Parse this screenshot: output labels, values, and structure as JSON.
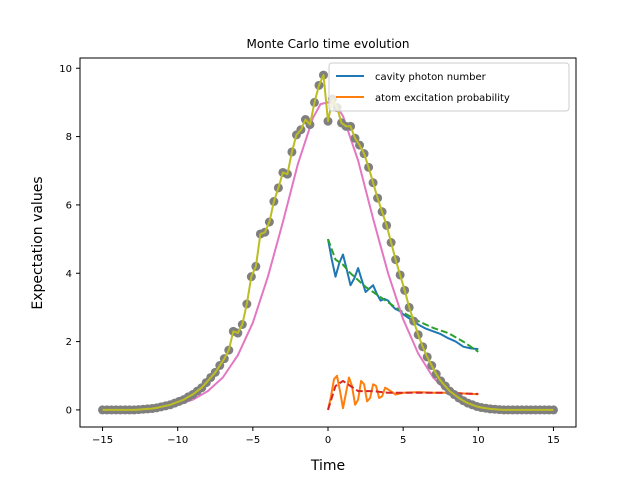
{
  "chart_data": {
    "type": "line",
    "title": "Monte Carlo time evolution",
    "xlabel": "Time",
    "ylabel": "Expectation values",
    "xlim": [
      -16.5,
      16.5
    ],
    "ylim": [
      -0.5,
      10.3
    ],
    "xticks": [
      -15,
      -10,
      -5,
      0,
      5,
      10,
      15
    ],
    "yticks": [
      0,
      2,
      4,
      6,
      8,
      10
    ],
    "grid": false,
    "legend_position": "top-right",
    "legend": [
      {
        "name": "cavity photon number",
        "color": "#1f77b4"
      },
      {
        "name": "atom excitation probability",
        "color": "#ff7f0e"
      }
    ],
    "series": [
      {
        "name": "cavity photon number",
        "color": "#1f77b4",
        "style": "solid",
        "x": [
          0.0,
          0.25,
          0.5,
          0.75,
          1.0,
          1.25,
          1.5,
          1.75,
          2.0,
          2.25,
          2.5,
          2.75,
          3.0,
          3.25,
          3.5,
          3.75,
          4.0,
          4.25,
          4.5,
          4.75,
          5.0,
          5.5,
          6.0,
          6.5,
          7.0,
          7.5,
          8.0,
          8.5,
          9.0,
          9.5,
          10.0
        ],
        "y": [
          5.0,
          4.4,
          3.9,
          4.3,
          4.55,
          4.1,
          3.65,
          3.85,
          4.15,
          3.8,
          3.45,
          3.55,
          3.65,
          3.4,
          3.2,
          3.25,
          3.2,
          3.05,
          2.95,
          2.9,
          2.8,
          2.65,
          2.5,
          2.38,
          2.3,
          2.22,
          2.1,
          2.0,
          1.85,
          1.8,
          1.78
        ]
      },
      {
        "name": "atom excitation probability",
        "color": "#ff7f0e",
        "style": "solid",
        "x": [
          0.0,
          0.2,
          0.4,
          0.6,
          0.8,
          1.0,
          1.2,
          1.4,
          1.6,
          1.8,
          2.0,
          2.2,
          2.4,
          2.6,
          2.8,
          3.0,
          3.2,
          3.4,
          3.6,
          3.8,
          4.0,
          4.5,
          5.0,
          6.0,
          7.0,
          8.0,
          9.0,
          10.0
        ],
        "y": [
          0.0,
          0.4,
          0.9,
          1.0,
          0.55,
          0.05,
          0.5,
          0.95,
          0.7,
          0.15,
          0.3,
          0.85,
          0.75,
          0.25,
          0.35,
          0.75,
          0.7,
          0.35,
          0.4,
          0.65,
          0.6,
          0.45,
          0.5,
          0.52,
          0.5,
          0.5,
          0.48,
          0.46
        ]
      },
      {
        "name": "",
        "color": "#2ca02c",
        "style": "dashed",
        "x": [
          0.0,
          0.5,
          1.0,
          1.5,
          2.0,
          2.5,
          3.0,
          3.5,
          4.0,
          4.5,
          5.0,
          6.0,
          7.0,
          8.0,
          9.0,
          10.0
        ],
        "y": [
          5.0,
          4.4,
          4.25,
          4.0,
          3.8,
          3.6,
          3.45,
          3.3,
          3.15,
          3.0,
          2.85,
          2.6,
          2.4,
          2.25,
          2.0,
          1.7
        ]
      },
      {
        "name": "",
        "color": "#d62728",
        "style": "dashed",
        "x": [
          0.0,
          0.5,
          1.0,
          1.5,
          2.0,
          2.5,
          3.0,
          4.0,
          5.0,
          6.0,
          7.0,
          8.0,
          9.0,
          10.0
        ],
        "y": [
          0.0,
          0.7,
          0.85,
          0.7,
          0.55,
          0.55,
          0.55,
          0.5,
          0.5,
          0.5,
          0.5,
          0.5,
          0.48,
          0.47
        ]
      },
      {
        "name": "",
        "color": "#e377c2",
        "style": "solid",
        "x": [
          -15,
          -12,
          -10,
          -9,
          -8,
          -7,
          -6,
          -5,
          -4,
          -3,
          -2,
          -1,
          -0.5,
          0,
          0.5,
          1,
          2,
          3,
          4,
          5,
          6,
          7,
          8,
          9,
          10,
          12,
          15
        ],
        "y": [
          0.02,
          0.05,
          0.15,
          0.3,
          0.55,
          0.95,
          1.6,
          2.55,
          3.9,
          5.5,
          7.2,
          8.55,
          8.95,
          9.0,
          8.95,
          8.6,
          7.3,
          5.6,
          4.0,
          2.65,
          1.65,
          0.95,
          0.5,
          0.25,
          0.12,
          0.03,
          0.0
        ]
      },
      {
        "name": "",
        "color": "#7f7f7f",
        "style": "markers",
        "x": [
          -15.0,
          -14.7,
          -14.4,
          -14.1,
          -13.8,
          -13.5,
          -13.2,
          -12.9,
          -12.6,
          -12.3,
          -12.0,
          -11.7,
          -11.4,
          -11.1,
          -10.8,
          -10.5,
          -10.2,
          -9.9,
          -9.6,
          -9.3,
          -9.0,
          -8.7,
          -8.4,
          -8.1,
          -7.8,
          -7.5,
          -7.2,
          -6.9,
          -6.6,
          -6.3,
          -6.0,
          -5.7,
          -5.4,
          -5.1,
          -4.8,
          -4.5,
          -4.2,
          -3.9,
          -3.6,
          -3.3,
          -3.0,
          -2.7,
          -2.4,
          -2.1,
          -1.8,
          -1.5,
          -1.2,
          -0.9,
          -0.6,
          -0.3,
          0.0,
          0.3,
          0.6,
          0.9,
          1.2,
          1.5,
          1.8,
          2.1,
          2.4,
          2.7,
          3.0,
          3.3,
          3.6,
          3.9,
          4.2,
          4.5,
          4.8,
          5.1,
          5.4,
          5.7,
          6.0,
          6.3,
          6.6,
          6.9,
          7.2,
          7.5,
          7.8,
          8.1,
          8.4,
          8.7,
          9.0,
          9.3,
          9.6,
          9.9,
          10.2,
          10.5,
          10.8,
          11.1,
          11.4,
          11.7,
          12.0,
          12.3,
          12.6,
          12.9,
          13.2,
          13.5,
          13.8,
          14.1,
          14.4,
          14.7,
          15.0
        ],
        "y": [
          0.0,
          0.0,
          0.0,
          0.0,
          0.0,
          0.0,
          0.0,
          0.0,
          0.01,
          0.02,
          0.03,
          0.04,
          0.06,
          0.09,
          0.12,
          0.15,
          0.2,
          0.25,
          0.3,
          0.38,
          0.45,
          0.55,
          0.65,
          0.8,
          0.95,
          1.1,
          1.3,
          1.5,
          1.75,
          2.3,
          2.25,
          2.5,
          3.1,
          3.9,
          4.2,
          5.15,
          5.2,
          5.5,
          6.1,
          6.5,
          6.95,
          6.9,
          7.55,
          8.05,
          8.2,
          8.5,
          8.35,
          9.0,
          9.5,
          9.8,
          8.45,
          9.1,
          8.85,
          8.4,
          8.3,
          8.3,
          7.95,
          7.75,
          7.5,
          7.1,
          6.65,
          6.2,
          5.8,
          5.4,
          4.9,
          4.4,
          3.95,
          3.5,
          3.0,
          2.6,
          2.2,
          1.85,
          1.55,
          1.3,
          1.05,
          0.85,
          0.7,
          0.55,
          0.45,
          0.35,
          0.27,
          0.2,
          0.15,
          0.1,
          0.07,
          0.05,
          0.03,
          0.02,
          0.01,
          0.0,
          0.0,
          0.0,
          0.0,
          0.0,
          0.0,
          0.0,
          0.0,
          0.0,
          0.0,
          0.0,
          0.0
        ]
      },
      {
        "name": "",
        "color": "#bcbd22",
        "style": "solid",
        "use_x_of": 5
      }
    ]
  }
}
